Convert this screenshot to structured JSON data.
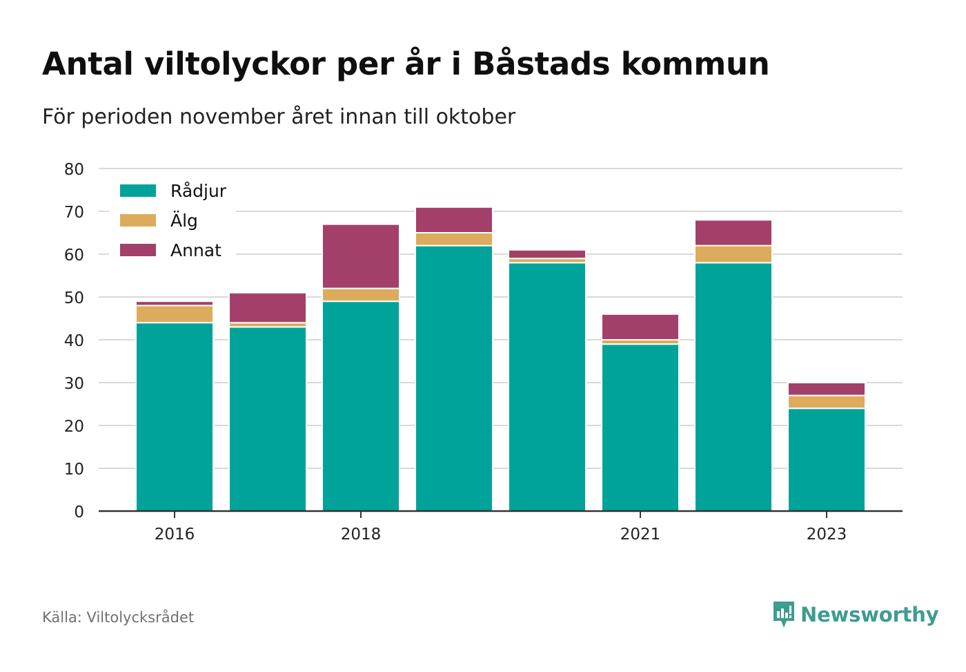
{
  "header": {
    "title": "Antal viltolyckor per år i Båstads kommun",
    "subtitle": "För perioden november året innan till oktober"
  },
  "footer": {
    "source": "Källa: Viltolycksrådet",
    "brand_name": "Newsworthy",
    "brand_color": "#3e9c90"
  },
  "colors": {
    "gridline": "#d9d9d9",
    "axis": "#333333",
    "tick_text": "#222222"
  },
  "chart_data": {
    "type": "bar",
    "stacked": true,
    "title": "Antal viltolyckor per år i Båstads kommun",
    "subtitle": "För perioden november året innan till oktober",
    "categories": [
      "2016",
      "2017",
      "2018",
      "2019",
      "2020",
      "2021",
      "2022",
      "2023"
    ],
    "x_tick_labels": [
      "2016",
      "",
      "2018",
      "",
      "",
      "2021",
      "",
      "2023"
    ],
    "series": [
      {
        "name": "Rådjur",
        "color": "#00a39a",
        "values": [
          44,
          43,
          49,
          62,
          58,
          39,
          58,
          24
        ]
      },
      {
        "name": "Älg",
        "color": "#dcac5c",
        "values": [
          4,
          1,
          3,
          3,
          1,
          1,
          4,
          3
        ]
      },
      {
        "name": "Annat",
        "color": "#a34069",
        "values": [
          1,
          7,
          15,
          6,
          2,
          6,
          6,
          3
        ]
      }
    ],
    "ylim": [
      0,
      80
    ],
    "yticks": [
      0,
      10,
      20,
      30,
      40,
      50,
      60,
      70,
      80
    ],
    "grid": true,
    "legend_position": "top-left",
    "xlabel": "",
    "ylabel": ""
  }
}
